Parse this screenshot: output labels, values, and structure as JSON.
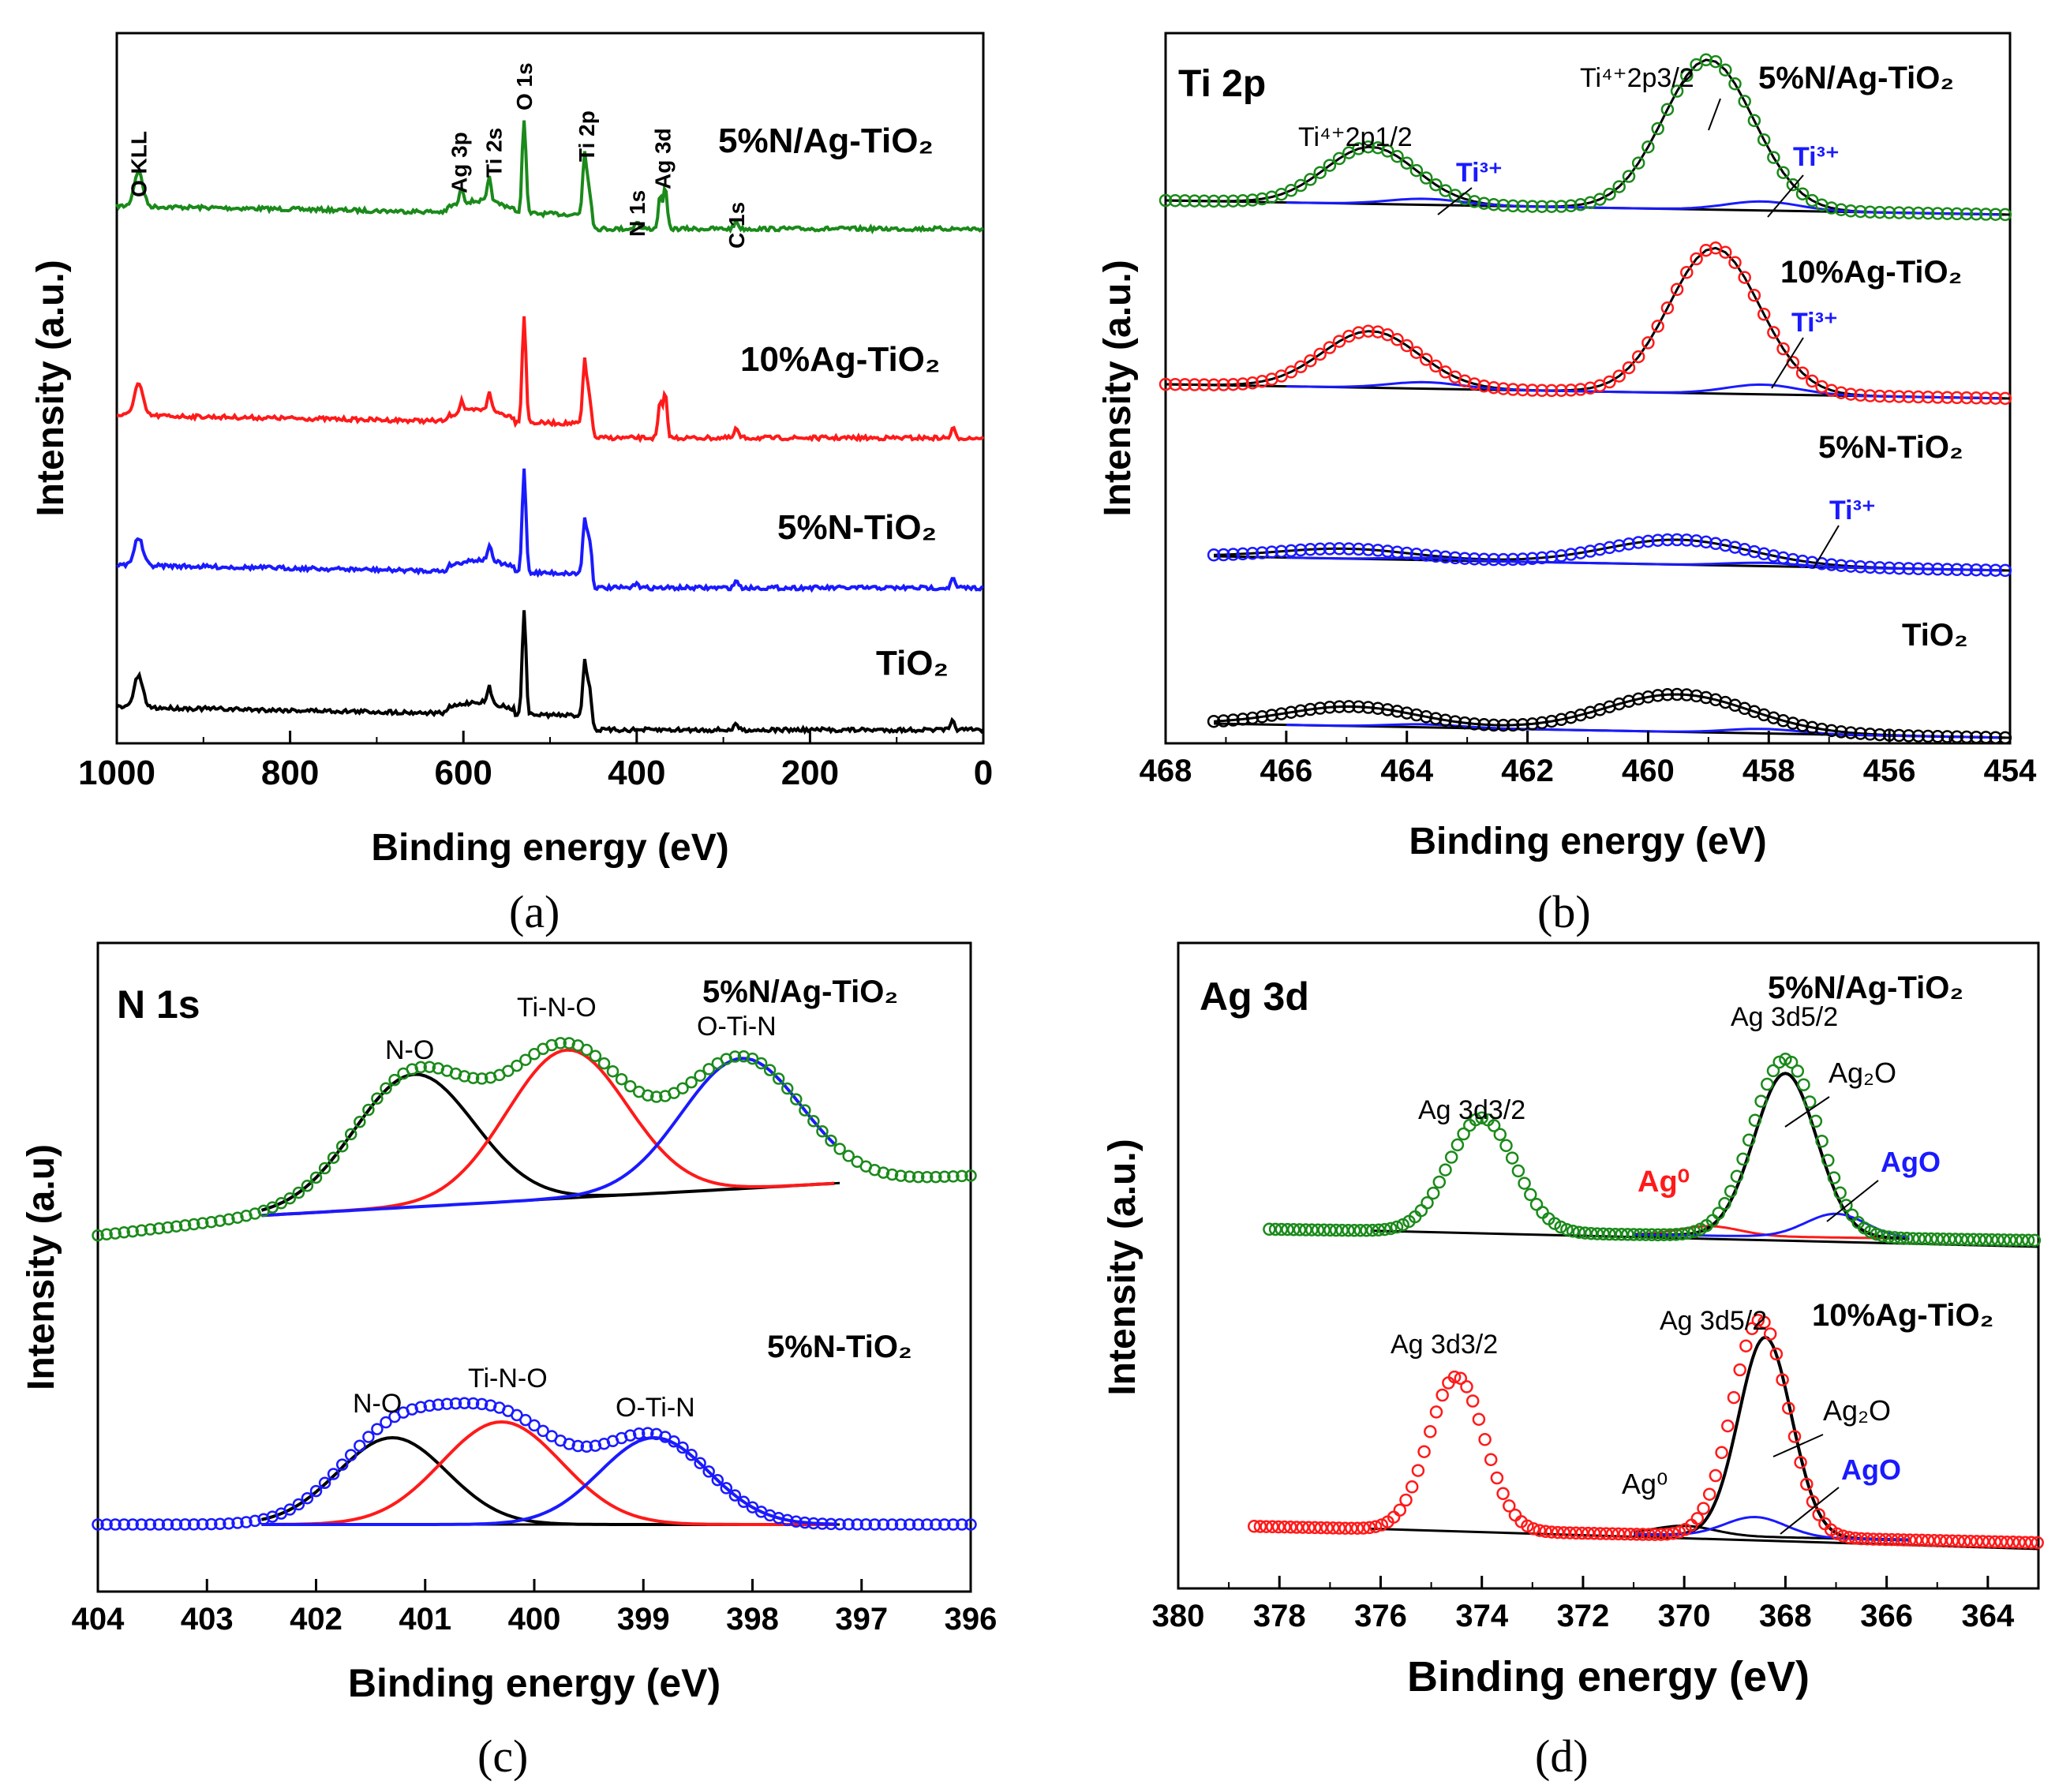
{
  "chart_data": [
    {
      "id": "a",
      "type": "line",
      "panel_caption": "(a)",
      "xlabel": "Binding energy (eV)",
      "ylabel": "Intensity (a.u.)",
      "xlim": [
        1000,
        0
      ],
      "xticks": [
        "1000",
        "800",
        "600",
        "400",
        "200",
        "0"
      ],
      "series": [
        {
          "name": "5%N/Ag-TiO₂",
          "color": "#1a8a1a",
          "peaks": [
            [
              975,
              45
            ],
            [
              602,
              20
            ],
            [
              570,
              30
            ],
            [
              530,
              120
            ],
            [
              460,
              80
            ],
            [
              454,
              45
            ],
            [
              400,
              10
            ],
            [
              373,
              40
            ],
            [
              367,
              50
            ],
            [
              285,
              10
            ]
          ]
        },
        {
          "name": "10%Ag-TiO₂",
          "color": "#ff1a1a",
          "peaks": [
            [
              975,
              40
            ],
            [
              602,
              15
            ],
            [
              570,
              25
            ],
            [
              530,
              135
            ],
            [
              460,
              80
            ],
            [
              454,
              50
            ],
            [
              373,
              45
            ],
            [
              367,
              55
            ],
            [
              285,
              12
            ],
            [
              35,
              12
            ]
          ]
        },
        {
          "name": "5%N-TiO₂",
          "color": "#1a1aff",
          "peaks": [
            [
              975,
              35
            ],
            [
              570,
              20
            ],
            [
              530,
              130
            ],
            [
              460,
              70
            ],
            [
              454,
              60
            ],
            [
              400,
              8
            ],
            [
              285,
              10
            ],
            [
              35,
              12
            ]
          ]
        },
        {
          "name": "TiO₂",
          "color": "#000000",
          "peaks": [
            [
              975,
              40
            ],
            [
              570,
              20
            ],
            [
              530,
              130
            ],
            [
              460,
              70
            ],
            [
              454,
              50
            ],
            [
              285,
              8
            ],
            [
              35,
              12
            ]
          ]
        }
      ],
      "peak_labels": [
        {
          "text": "O KLL",
          "x": 975
        },
        {
          "text": "Ag 3p",
          "x": 605
        },
        {
          "text": "Ti 2s",
          "x": 565
        },
        {
          "text": "O 1s",
          "x": 530
        },
        {
          "text": "Ti 2p",
          "x": 458
        },
        {
          "text": "N 1s",
          "x": 400
        },
        {
          "text": "Ag 3d",
          "x": 370
        },
        {
          "text": "C 1s",
          "x": 285
        }
      ]
    },
    {
      "id": "b",
      "type": "line",
      "panel_caption": "(b)",
      "panel_title": "Ti 2p",
      "xlabel": "Binding energy (eV)",
      "ylabel": "Intensity (a.u.)",
      "xlim": [
        468,
        454
      ],
      "xticks": [
        "468",
        "466",
        "464",
        "462",
        "460",
        "458",
        "456",
        "454"
      ],
      "series": [
        {
          "name": "5%N/Ag-TiO₂",
          "color": "#1a8a1a",
          "x_start": 468,
          "peaks": [
            [
              464.6,
              0.38,
              0.75
            ],
            [
              459.0,
              1.0,
              0.75
            ]
          ]
        },
        {
          "name": "10%Ag-TiO₂",
          "color": "#ff1a1a",
          "x_start": 468,
          "peaks": [
            [
              464.6,
              0.35,
              0.8
            ],
            [
              458.9,
              0.9,
              0.75
            ]
          ]
        },
        {
          "name": "5%N-TiO₂",
          "color": "#1a1aff",
          "x_start": 467.2,
          "peaks": [
            [
              465.0,
              0.18,
              1.1
            ],
            [
              459.5,
              0.45,
              1.2
            ]
          ]
        },
        {
          "name": "TiO₂",
          "color": "#000000",
          "x_start": 467.2,
          "peaks": [
            [
              464.9,
              0.26,
              1.1
            ],
            [
              459.5,
              0.5,
              1.2
            ]
          ]
        }
      ],
      "annotations": [
        {
          "text": "Ti⁴⁺2p1/2",
          "color": "#000000"
        },
        {
          "text": "Ti⁴⁺2p3/2",
          "color": "#000000"
        },
        {
          "text": "Ti³⁺",
          "color": "#1a1aff"
        },
        {
          "text": "Ti³⁺",
          "color": "#1a1aff"
        },
        {
          "text": "Ti³⁺",
          "color": "#1a1aff"
        },
        {
          "text": "Ti³⁺",
          "color": "#1a1aff"
        }
      ]
    },
    {
      "id": "c",
      "type": "line",
      "panel_caption": "(c)",
      "panel_title": "N 1s",
      "xlabel": "Binding energy (eV)",
      "ylabel": "Intensity (a.u)",
      "xlim": [
        404,
        396
      ],
      "xticks": [
        "404",
        "403",
        "402",
        "401",
        "400",
        "399",
        "398",
        "397",
        "396"
      ],
      "series": [
        {
          "name": "5%N/Ag-TiO₂",
          "color": "#1a8a1a",
          "components": [
            {
              "name": "N-O",
              "center": 401.1,
              "color": "#000000"
            },
            {
              "name": "Ti-N-O",
              "center": 399.7,
              "color": "#ff1a1a"
            },
            {
              "name": "O-Ti-N",
              "center": 398.1,
              "color": "#1a1aff"
            }
          ]
        },
        {
          "name": "5%N-TiO₂",
          "color": "#1a1aff",
          "components": [
            {
              "name": "N-O",
              "center": 401.3,
              "color": "#000000"
            },
            {
              "name": "Ti-N-O",
              "center": 400.3,
              "color": "#ff1a1a"
            },
            {
              "name": "O-Ti-N",
              "center": 398.9,
              "color": "#1a1aff"
            }
          ]
        }
      ]
    },
    {
      "id": "d",
      "type": "line",
      "panel_caption": "(d)",
      "panel_title": "Ag 3d",
      "xlabel": "Binding energy (eV)",
      "ylabel": "Intensity (a.u.)",
      "xlim": [
        380,
        363
      ],
      "xticks": [
        "380",
        "378",
        "376",
        "374",
        "372",
        "370",
        "368",
        "366",
        "364"
      ],
      "series": [
        {
          "name": "5%N/Ag-TiO₂",
          "color": "#1a8a1a",
          "peaks": [
            {
              "name": "Ag 3d3/2",
              "center": 374.0
            },
            {
              "name": "Ag 3d5/2",
              "center": 368.0
            }
          ],
          "components": [
            {
              "name": "Ag⁰",
              "center": 369.5,
              "color": "#ff1a1a"
            },
            {
              "name": "Ag₂O",
              "center": 368.0,
              "color": "#000000"
            },
            {
              "name": "AgO",
              "center": 367.0,
              "color": "#1a1aff"
            }
          ]
        },
        {
          "name": "10%Ag-TiO₂",
          "color": "#ff1a1a",
          "peaks": [
            {
              "name": "Ag 3d3/2",
              "center": 374.5
            },
            {
              "name": "Ag 3d5/2",
              "center": 368.5
            }
          ],
          "components": [
            {
              "name": "Ag⁰",
              "center": 370.0,
              "color": "#000000"
            },
            {
              "name": "Ag₂O",
              "center": 368.4,
              "color": "#000000"
            },
            {
              "name": "AgO",
              "center": 368.6,
              "color": "#1a1aff"
            }
          ]
        }
      ]
    }
  ]
}
